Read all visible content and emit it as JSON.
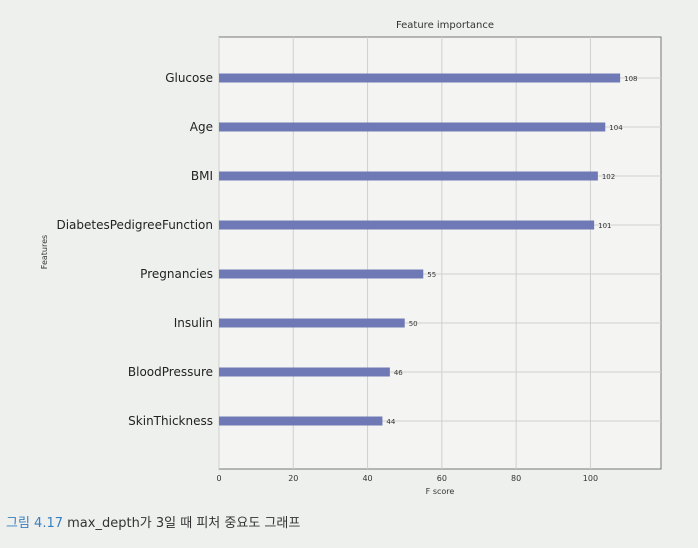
{
  "chart_data": {
    "type": "bar",
    "orientation": "horizontal",
    "title": "Feature importance",
    "xlabel": "F score",
    "ylabel": "Features",
    "categories": [
      "Glucose",
      "Age",
      "BMI",
      "DiabetesPedigreeFunction",
      "Pregnancies",
      "Insulin",
      "BloodPressure",
      "SkinThickness"
    ],
    "values": [
      108,
      104,
      102,
      101,
      55,
      50,
      46,
      44
    ],
    "xlim": [
      0,
      119
    ],
    "xticks": [
      0,
      20,
      40,
      60,
      80,
      100
    ],
    "grid": true,
    "bar_color": "#6f79b5"
  },
  "caption": {
    "figure_number": "그림 4.17",
    "text": "max_depth가 3일 때 피처 중요도 그래프"
  }
}
